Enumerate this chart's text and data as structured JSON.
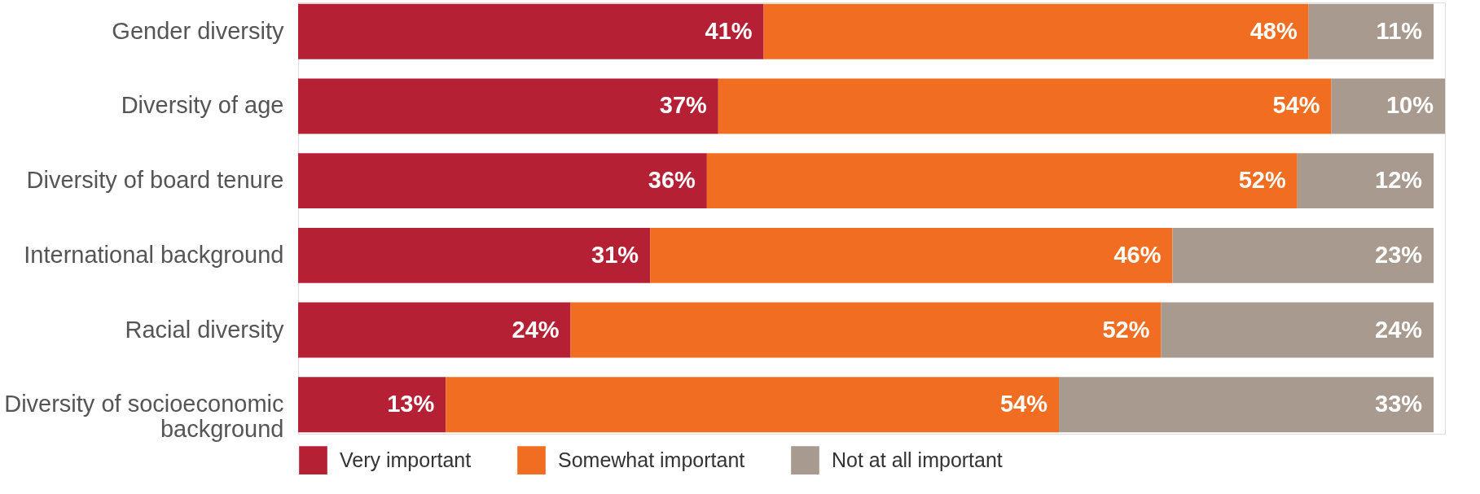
{
  "chart_data": {
    "type": "bar",
    "orientation": "horizontal",
    "stacked": true,
    "categories": [
      "Gender diversity",
      "Diversity of age",
      "Diversity of board tenure",
      "International background",
      "Racial diversity",
      "Diversity of socioeconomic background"
    ],
    "series": [
      {
        "name": "Very important",
        "color": "#b52034",
        "values": [
          41,
          37,
          36,
          31,
          24,
          13
        ],
        "value_labels": [
          "41%",
          "37%",
          "36%",
          "31%",
          "24%",
          "13%"
        ]
      },
      {
        "name": "Somewhat important",
        "color": "#f06d22",
        "values": [
          48,
          54,
          52,
          46,
          52,
          54
        ],
        "value_labels": [
          "48%",
          "54%",
          "52%",
          "46%",
          "52%",
          "54%"
        ]
      },
      {
        "name": "Not at all important",
        "color": "#a89a8e",
        "values": [
          11,
          10,
          12,
          23,
          24,
          33
        ],
        "value_labels": [
          "11%",
          "10%",
          "12%",
          "23%",
          "24%",
          "33%"
        ]
      }
    ],
    "tick_labels": "y",
    "grid": false,
    "legend": "bottom"
  }
}
